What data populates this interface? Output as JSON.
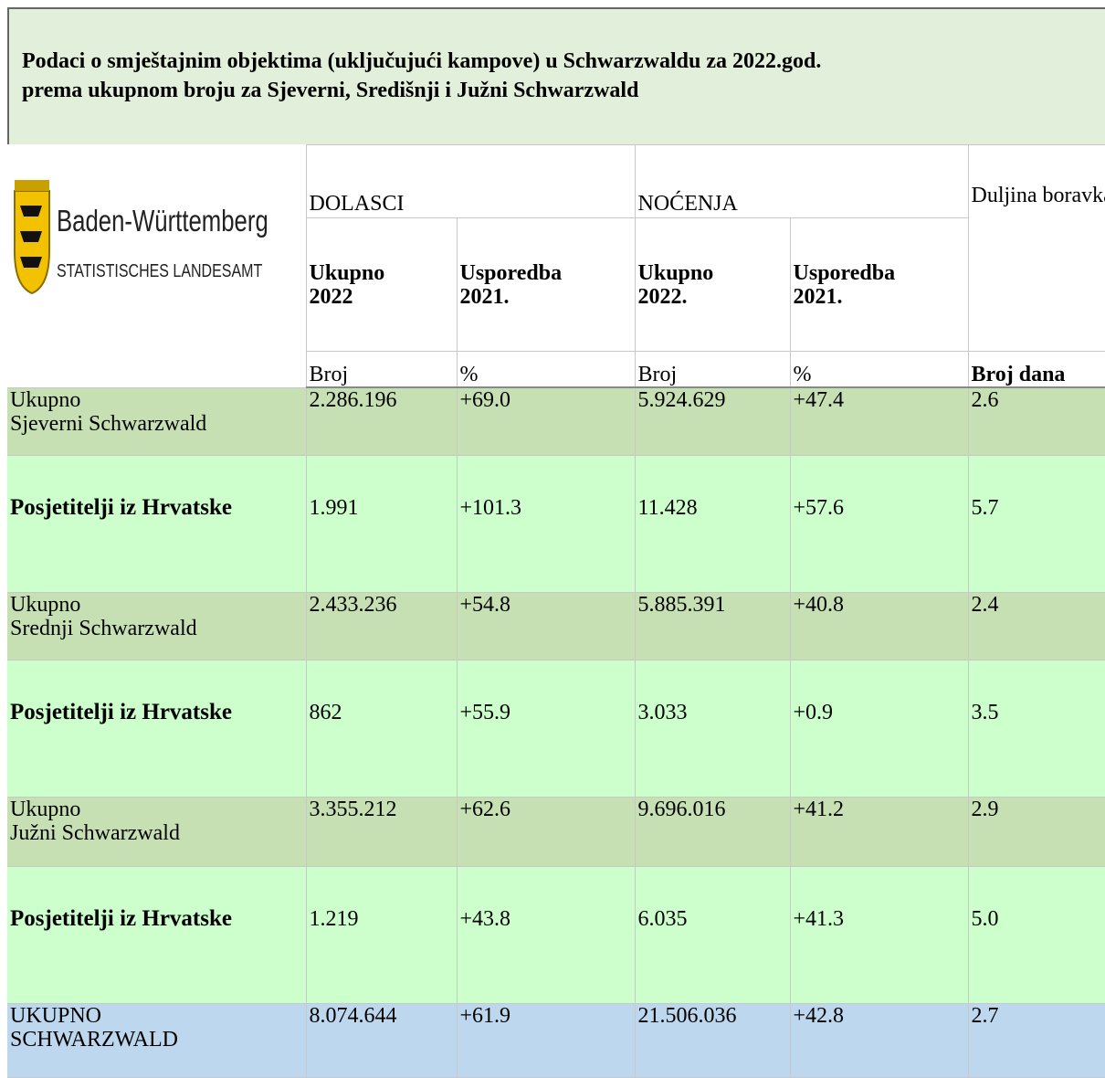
{
  "title": [
    "Podaci o smještajnim objektima (uključujući kampove) u Schwarzwaldu za 2022.god.",
    "prema ukupnom broju za Sjeverni, Središnji i Južni Schwarzwald"
  ],
  "logo": {
    "name": "Baden-Württemberg",
    "subtitle": "STATISTISCHES LANDESAMT"
  },
  "header": {
    "groups": [
      "DOLASCI",
      "NOĆENJA",
      "Duljina boravka"
    ],
    "columns": [
      [
        "Ukupno",
        "2022"
      ],
      [
        "Usporedba",
        "2021."
      ],
      [
        "Ukupno",
        "2022."
      ],
      [
        "Usporedba",
        "2021."
      ]
    ],
    "units": [
      "Broj",
      "%",
      "Broj",
      "%",
      "Broj dana"
    ]
  },
  "rows": [
    {
      "label": [
        "Ukupno",
        "Sjeverni Schwarzwald"
      ],
      "values": [
        "2.286.196",
        "+69.0",
        "5.924.629",
        "+47.4",
        "2.6"
      ]
    },
    {
      "label": [
        "Posjetitelji iz Hrvatske"
      ],
      "values": [
        "1.991",
        "+101.3",
        "11.428",
        "+57.6",
        "5.7"
      ]
    },
    {
      "label": [
        "Ukupno",
        "Srednji Schwarzwald"
      ],
      "values": [
        "2.433.236",
        "+54.8",
        "5.885.391",
        "+40.8",
        "2.4"
      ]
    },
    {
      "label": [
        "Posjetitelji iz Hrvatske"
      ],
      "values": [
        "862",
        "+55.9",
        "3.033",
        "+0.9",
        "3.5"
      ]
    },
    {
      "label": [
        "Ukupno",
        "Južni Schwarzwald"
      ],
      "values": [
        "3.355.212",
        "+62.6",
        "9.696.016",
        "+41.2",
        "2.9"
      ]
    },
    {
      "label": [
        "Posjetitelji iz Hrvatske"
      ],
      "values": [
        "1.219",
        "+43.8",
        "6.035",
        "+41.3",
        "5.0"
      ]
    },
    {
      "label": [
        "UKUPNO",
        "SCHWARZWALD"
      ],
      "values": [
        "8.074.644",
        "+61.9",
        "21.506.036",
        "+42.8",
        "2.7"
      ]
    }
  ]
}
